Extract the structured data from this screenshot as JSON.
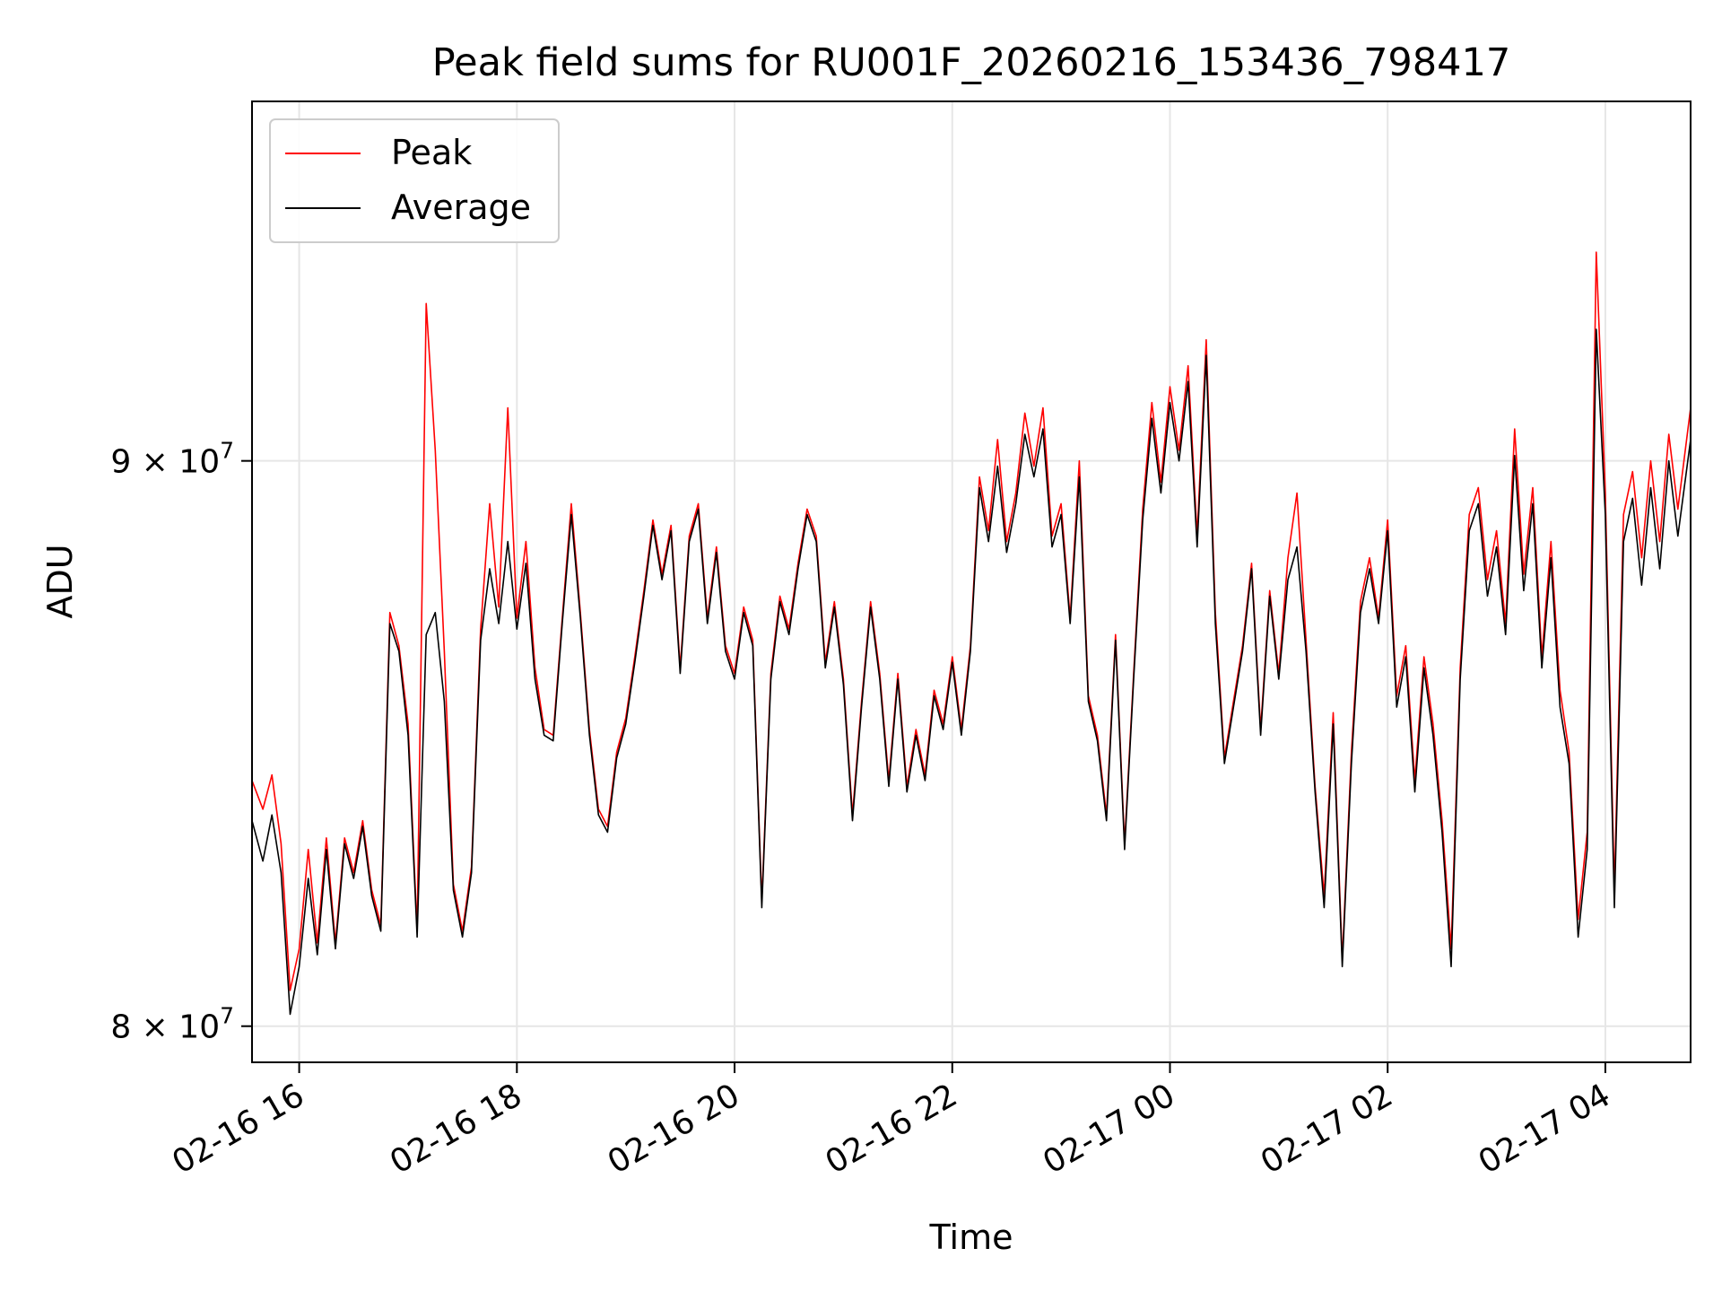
{
  "chart_data": {
    "type": "line",
    "title": "Peak field sums for RU001F_20260216_153436_798417",
    "xlabel": "Time",
    "ylabel": "ADU",
    "y_scale": "log",
    "xlim": [
      "2026-02-16 15:34",
      "2026-02-17 04:47"
    ],
    "ylim": [
      79400000,
      97000000
    ],
    "x_ticks": [
      "02-16 16",
      "02-16 18",
      "02-16 20",
      "02-16 22",
      "02-17 00",
      "02-17 02",
      "02-17 04"
    ],
    "y_ticks": [
      {
        "value": 80000000,
        "mantissa": "8",
        "base": "10",
        "exp": "7"
      },
      {
        "value": 90000000,
        "mantissa": "9",
        "base": "10",
        "exp": "7"
      }
    ],
    "grid": true,
    "legend_position": "top-left",
    "series": [
      {
        "name": "Peak",
        "color": "#ff0000",
        "line_width": 1.0
      },
      {
        "name": "Average",
        "color": "#000000",
        "line_width": 1.0
      }
    ],
    "average_points": [
      [
        "2026-02-16 15:34",
        83.5
      ],
      [
        "2026-02-16 15:40",
        82.8
      ],
      [
        "2026-02-16 15:45",
        83.6
      ],
      [
        "2026-02-16 15:50",
        82.6
      ],
      [
        "2026-02-16 15:55",
        80.2
      ],
      [
        "2026-02-16 16:00",
        81.0
      ],
      [
        "2026-02-16 16:05",
        82.5
      ],
      [
        "2026-02-16 16:10",
        81.2
      ],
      [
        "2026-02-16 16:15",
        83.0
      ],
      [
        "2026-02-16 16:20",
        81.3
      ],
      [
        "2026-02-16 16:25",
        83.1
      ],
      [
        "2026-02-16 16:30",
        82.5
      ],
      [
        "2026-02-16 16:35",
        83.4
      ],
      [
        "2026-02-16 16:40",
        82.2
      ],
      [
        "2026-02-16 16:45",
        81.6
      ],
      [
        "2026-02-16 16:50",
        87.0
      ],
      [
        "2026-02-16 16:55",
        86.5
      ],
      [
        "2026-02-16 17:00",
        85.0
      ],
      [
        "2026-02-16 17:05",
        81.5
      ],
      [
        "2026-02-16 17:10",
        86.8
      ],
      [
        "2026-02-16 17:15",
        87.2
      ],
      [
        "2026-02-16 17:20",
        85.6
      ],
      [
        "2026-02-16 17:25",
        82.3
      ],
      [
        "2026-02-16 17:30",
        81.5
      ],
      [
        "2026-02-16 17:35",
        82.6
      ],
      [
        "2026-02-16 17:40",
        86.7
      ],
      [
        "2026-02-16 17:45",
        88.0
      ],
      [
        "2026-02-16 17:50",
        87.0
      ],
      [
        "2026-02-16 17:55",
        88.5
      ],
      [
        "2026-02-16 18:00",
        86.9
      ],
      [
        "2026-02-16 18:05",
        88.1
      ],
      [
        "2026-02-16 18:10",
        86.0
      ],
      [
        "2026-02-16 18:15",
        85.0
      ],
      [
        "2026-02-16 18:20",
        84.9
      ],
      [
        "2026-02-16 18:25",
        87.0
      ],
      [
        "2026-02-16 18:30",
        89.0
      ],
      [
        "2026-02-16 18:35",
        87.1
      ],
      [
        "2026-02-16 18:40",
        85.0
      ],
      [
        "2026-02-16 18:45",
        83.6
      ],
      [
        "2026-02-16 18:50",
        83.3
      ],
      [
        "2026-02-16 18:55",
        84.6
      ],
      [
        "2026-02-16 19:00",
        85.2
      ],
      [
        "2026-02-16 19:05",
        86.3
      ],
      [
        "2026-02-16 19:10",
        87.5
      ],
      [
        "2026-02-16 19:15",
        88.8
      ],
      [
        "2026-02-16 19:20",
        87.8
      ],
      [
        "2026-02-16 19:25",
        88.7
      ],
      [
        "2026-02-16 19:30",
        86.1
      ],
      [
        "2026-02-16 19:35",
        88.5
      ],
      [
        "2026-02-16 19:40",
        89.1
      ],
      [
        "2026-02-16 19:45",
        87.0
      ],
      [
        "2026-02-16 19:50",
        88.3
      ],
      [
        "2026-02-16 19:55",
        86.5
      ],
      [
        "2026-02-16 20:00",
        86.0
      ],
      [
        "2026-02-16 20:05",
        87.2
      ],
      [
        "2026-02-16 20:10",
        86.6
      ],
      [
        "2026-02-16 20:15",
        82.0
      ],
      [
        "2026-02-16 20:20",
        86.0
      ],
      [
        "2026-02-16 20:25",
        87.4
      ],
      [
        "2026-02-16 20:30",
        86.8
      ],
      [
        "2026-02-16 20:35",
        88.0
      ],
      [
        "2026-02-16 20:40",
        89.0
      ],
      [
        "2026-02-16 20:45",
        88.5
      ],
      [
        "2026-02-16 20:50",
        86.2
      ],
      [
        "2026-02-16 20:55",
        87.3
      ],
      [
        "2026-02-16 21:00",
        85.9
      ],
      [
        "2026-02-16 21:05",
        83.5
      ],
      [
        "2026-02-16 21:10",
        85.5
      ],
      [
        "2026-02-16 21:15",
        87.3
      ],
      [
        "2026-02-16 21:20",
        86.0
      ],
      [
        "2026-02-16 21:25",
        84.1
      ],
      [
        "2026-02-16 21:30",
        86.0
      ],
      [
        "2026-02-16 21:35",
        84.0
      ],
      [
        "2026-02-16 21:40",
        85.0
      ],
      [
        "2026-02-16 21:45",
        84.2
      ],
      [
        "2026-02-16 21:50",
        85.7
      ],
      [
        "2026-02-16 21:55",
        85.1
      ],
      [
        "2026-02-16 22:00",
        86.3
      ],
      [
        "2026-02-16 22:05",
        85.0
      ],
      [
        "2026-02-16 22:10",
        86.5
      ],
      [
        "2026-02-16 22:15",
        89.5
      ],
      [
        "2026-02-16 22:20",
        88.5
      ],
      [
        "2026-02-16 22:25",
        89.9
      ],
      [
        "2026-02-16 22:30",
        88.3
      ],
      [
        "2026-02-16 22:35",
        89.2
      ],
      [
        "2026-02-16 22:40",
        90.5
      ],
      [
        "2026-02-16 22:45",
        89.7
      ],
      [
        "2026-02-16 22:50",
        90.6
      ],
      [
        "2026-02-16 22:55",
        88.4
      ],
      [
        "2026-02-16 23:00",
        89.0
      ],
      [
        "2026-02-16 23:05",
        87.0
      ],
      [
        "2026-02-16 23:10",
        89.7
      ],
      [
        "2026-02-16 23:15",
        85.6
      ],
      [
        "2026-02-16 23:20",
        84.9
      ],
      [
        "2026-02-16 23:25",
        83.5
      ],
      [
        "2026-02-16 23:30",
        86.7
      ],
      [
        "2026-02-16 23:35",
        83.0
      ],
      [
        "2026-02-16 23:40",
        86.0
      ],
      [
        "2026-02-16 23:45",
        88.9
      ],
      [
        "2026-02-16 23:50",
        90.8
      ],
      [
        "2026-02-16 23:55",
        89.4
      ],
      [
        "2026-02-17 00:00",
        91.1
      ],
      [
        "2026-02-17 00:05",
        90.0
      ],
      [
        "2026-02-17 00:10",
        91.5
      ],
      [
        "2026-02-17 00:15",
        88.4
      ],
      [
        "2026-02-17 00:20",
        92.0
      ],
      [
        "2026-02-17 00:25",
        87.0
      ],
      [
        "2026-02-17 00:30",
        84.5
      ],
      [
        "2026-02-17 00:35",
        85.5
      ],
      [
        "2026-02-17 00:40",
        86.5
      ],
      [
        "2026-02-17 00:45",
        88.0
      ],
      [
        "2026-02-17 00:50",
        85.0
      ],
      [
        "2026-02-17 00:55",
        87.5
      ],
      [
        "2026-02-17 01:00",
        86.0
      ],
      [
        "2026-02-17 01:05",
        87.8
      ],
      [
        "2026-02-17 01:10",
        88.4
      ],
      [
        "2026-02-17 01:15",
        86.5
      ],
      [
        "2026-02-17 01:20",
        84.0
      ],
      [
        "2026-02-17 01:25",
        82.0
      ],
      [
        "2026-02-17 01:30",
        85.2
      ],
      [
        "2026-02-17 01:35",
        81.0
      ],
      [
        "2026-02-17 01:40",
        84.5
      ],
      [
        "2026-02-17 01:45",
        87.2
      ],
      [
        "2026-02-17 01:50",
        88.0
      ],
      [
        "2026-02-17 01:55",
        87.0
      ],
      [
        "2026-02-17 02:00",
        88.7
      ],
      [
        "2026-02-17 02:05",
        85.5
      ],
      [
        "2026-02-17 02:10",
        86.4
      ],
      [
        "2026-02-17 02:15",
        84.0
      ],
      [
        "2026-02-17 02:20",
        86.2
      ],
      [
        "2026-02-17 02:25",
        85.0
      ],
      [
        "2026-02-17 02:30",
        83.3
      ],
      [
        "2026-02-17 02:35",
        81.0
      ],
      [
        "2026-02-17 02:40",
        86.0
      ],
      [
        "2026-02-17 02:45",
        88.7
      ],
      [
        "2026-02-17 02:50",
        89.2
      ],
      [
        "2026-02-17 02:55",
        87.5
      ],
      [
        "2026-02-17 03:00",
        88.4
      ],
      [
        "2026-02-17 03:05",
        86.8
      ],
      [
        "2026-02-17 03:10",
        90.1
      ],
      [
        "2026-02-17 03:15",
        87.6
      ],
      [
        "2026-02-17 03:20",
        89.2
      ],
      [
        "2026-02-17 03:25",
        86.2
      ],
      [
        "2026-02-17 03:30",
        88.2
      ],
      [
        "2026-02-17 03:35",
        85.5
      ],
      [
        "2026-02-17 03:40",
        84.5
      ],
      [
        "2026-02-17 03:45",
        81.5
      ],
      [
        "2026-02-17 03:50",
        83.0
      ],
      [
        "2026-02-17 03:55",
        92.5
      ],
      [
        "2026-02-17 04:00",
        89.0
      ],
      [
        "2026-02-17 04:05",
        82.0
      ],
      [
        "2026-02-17 04:10",
        88.5
      ],
      [
        "2026-02-17 04:15",
        89.3
      ],
      [
        "2026-02-17 04:20",
        87.7
      ],
      [
        "2026-02-17 04:25",
        89.5
      ],
      [
        "2026-02-17 04:30",
        88.0
      ],
      [
        "2026-02-17 04:35",
        90.0
      ],
      [
        "2026-02-17 04:40",
        88.6
      ],
      [
        "2026-02-17 04:47",
        90.4
      ]
    ],
    "peak_points": [
      [
        "2026-02-16 15:34",
        84.2
      ],
      [
        "2026-02-16 15:40",
        83.7
      ],
      [
        "2026-02-16 15:45",
        84.3
      ],
      [
        "2026-02-16 15:50",
        83.1
      ],
      [
        "2026-02-16 15:55",
        80.6
      ],
      [
        "2026-02-16 16:00",
        81.3
      ],
      [
        "2026-02-16 16:05",
        83.0
      ],
      [
        "2026-02-16 16:10",
        81.4
      ],
      [
        "2026-02-16 16:15",
        83.2
      ],
      [
        "2026-02-16 16:20",
        81.4
      ],
      [
        "2026-02-16 16:25",
        83.2
      ],
      [
        "2026-02-16 16:30",
        82.6
      ],
      [
        "2026-02-16 16:35",
        83.5
      ],
      [
        "2026-02-16 16:40",
        82.3
      ],
      [
        "2026-02-16 16:45",
        81.7
      ],
      [
        "2026-02-16 16:50",
        87.2
      ],
      [
        "2026-02-16 16:55",
        86.6
      ],
      [
        "2026-02-16 17:00",
        85.2
      ],
      [
        "2026-02-16 17:05",
        81.6
      ],
      [
        "2026-02-16 17:10",
        93.0
      ],
      [
        "2026-02-16 17:15",
        90.2
      ],
      [
        "2026-02-16 17:20",
        86.5
      ],
      [
        "2026-02-16 17:25",
        82.4
      ],
      [
        "2026-02-16 17:30",
        81.6
      ],
      [
        "2026-02-16 17:35",
        82.7
      ],
      [
        "2026-02-16 17:40",
        86.9
      ],
      [
        "2026-02-16 17:45",
        89.2
      ],
      [
        "2026-02-16 17:50",
        87.3
      ],
      [
        "2026-02-16 17:55",
        91.0
      ],
      [
        "2026-02-16 18:00",
        87.1
      ],
      [
        "2026-02-16 18:05",
        88.5
      ],
      [
        "2026-02-16 18:10",
        86.2
      ],
      [
        "2026-02-16 18:15",
        85.1
      ],
      [
        "2026-02-16 18:20",
        85.0
      ],
      [
        "2026-02-16 18:25",
        87.1
      ],
      [
        "2026-02-16 18:30",
        89.2
      ],
      [
        "2026-02-16 18:35",
        87.2
      ],
      [
        "2026-02-16 18:40",
        85.1
      ],
      [
        "2026-02-16 18:45",
        83.7
      ],
      [
        "2026-02-16 18:50",
        83.4
      ],
      [
        "2026-02-16 18:55",
        84.7
      ],
      [
        "2026-02-16 19:00",
        85.3
      ],
      [
        "2026-02-16 19:05",
        86.4
      ],
      [
        "2026-02-16 19:10",
        87.6
      ],
      [
        "2026-02-16 19:15",
        88.9
      ],
      [
        "2026-02-16 19:20",
        87.9
      ],
      [
        "2026-02-16 19:25",
        88.8
      ],
      [
        "2026-02-16 19:30",
        86.2
      ],
      [
        "2026-02-16 19:35",
        88.6
      ],
      [
        "2026-02-16 19:40",
        89.2
      ],
      [
        "2026-02-16 19:45",
        87.1
      ],
      [
        "2026-02-16 19:50",
        88.4
      ],
      [
        "2026-02-16 19:55",
        86.6
      ],
      [
        "2026-02-16 20:00",
        86.1
      ],
      [
        "2026-02-16 20:05",
        87.3
      ],
      [
        "2026-02-16 20:10",
        86.7
      ],
      [
        "2026-02-16 20:15",
        82.1
      ],
      [
        "2026-02-16 20:20",
        86.1
      ],
      [
        "2026-02-16 20:25",
        87.5
      ],
      [
        "2026-02-16 20:30",
        86.9
      ],
      [
        "2026-02-16 20:35",
        88.1
      ],
      [
        "2026-02-16 20:40",
        89.1
      ],
      [
        "2026-02-16 20:45",
        88.6
      ],
      [
        "2026-02-16 20:50",
        86.3
      ],
      [
        "2026-02-16 20:55",
        87.4
      ],
      [
        "2026-02-16 21:00",
        86.0
      ],
      [
        "2026-02-16 21:05",
        83.6
      ],
      [
        "2026-02-16 21:10",
        85.6
      ],
      [
        "2026-02-16 21:15",
        87.4
      ],
      [
        "2026-02-16 21:20",
        86.1
      ],
      [
        "2026-02-16 21:25",
        84.2
      ],
      [
        "2026-02-16 21:30",
        86.1
      ],
      [
        "2026-02-16 21:35",
        84.1
      ],
      [
        "2026-02-16 21:40",
        85.1
      ],
      [
        "2026-02-16 21:45",
        84.3
      ],
      [
        "2026-02-16 21:50",
        85.8
      ],
      [
        "2026-02-16 21:55",
        85.2
      ],
      [
        "2026-02-16 22:00",
        86.4
      ],
      [
        "2026-02-16 22:05",
        85.1
      ],
      [
        "2026-02-16 22:10",
        86.6
      ],
      [
        "2026-02-16 22:15",
        89.7
      ],
      [
        "2026-02-16 22:20",
        88.7
      ],
      [
        "2026-02-16 22:25",
        90.4
      ],
      [
        "2026-02-16 22:30",
        88.5
      ],
      [
        "2026-02-16 22:35",
        89.4
      ],
      [
        "2026-02-16 22:40",
        90.9
      ],
      [
        "2026-02-16 22:45",
        89.9
      ],
      [
        "2026-02-16 22:50",
        91.0
      ],
      [
        "2026-02-16 22:55",
        88.6
      ],
      [
        "2026-02-16 23:00",
        89.2
      ],
      [
        "2026-02-16 23:05",
        87.1
      ],
      [
        "2026-02-16 23:10",
        90.0
      ],
      [
        "2026-02-16 23:15",
        85.7
      ],
      [
        "2026-02-16 23:20",
        85.0
      ],
      [
        "2026-02-16 23:25",
        83.6
      ],
      [
        "2026-02-16 23:30",
        86.8
      ],
      [
        "2026-02-16 23:35",
        83.1
      ],
      [
        "2026-02-16 23:40",
        86.1
      ],
      [
        "2026-02-16 23:45",
        89.1
      ],
      [
        "2026-02-16 23:50",
        91.1
      ],
      [
        "2026-02-16 23:55",
        89.6
      ],
      [
        "2026-02-17 00:00",
        91.4
      ],
      [
        "2026-02-17 00:05",
        90.2
      ],
      [
        "2026-02-17 00:10",
        91.8
      ],
      [
        "2026-02-17 00:15",
        88.6
      ],
      [
        "2026-02-17 00:20",
        92.3
      ],
      [
        "2026-02-17 00:25",
        87.2
      ],
      [
        "2026-02-17 00:30",
        84.6
      ],
      [
        "2026-02-17 00:35",
        85.6
      ],
      [
        "2026-02-17 00:40",
        86.6
      ],
      [
        "2026-02-17 00:45",
        88.1
      ],
      [
        "2026-02-17 00:50",
        85.1
      ],
      [
        "2026-02-17 00:55",
        87.6
      ],
      [
        "2026-02-17 01:00",
        86.1
      ],
      [
        "2026-02-17 01:05",
        88.2
      ],
      [
        "2026-02-17 01:10",
        89.4
      ],
      [
        "2026-02-17 01:15",
        86.7
      ],
      [
        "2026-02-17 01:20",
        84.1
      ],
      [
        "2026-02-17 01:25",
        82.2
      ],
      [
        "2026-02-17 01:30",
        85.4
      ],
      [
        "2026-02-17 01:35",
        81.1
      ],
      [
        "2026-02-17 01:40",
        84.7
      ],
      [
        "2026-02-17 01:45",
        87.4
      ],
      [
        "2026-02-17 01:50",
        88.2
      ],
      [
        "2026-02-17 01:55",
        87.1
      ],
      [
        "2026-02-17 02:00",
        88.9
      ],
      [
        "2026-02-17 02:05",
        85.7
      ],
      [
        "2026-02-17 02:10",
        86.6
      ],
      [
        "2026-02-17 02:15",
        84.2
      ],
      [
        "2026-02-17 02:20",
        86.4
      ],
      [
        "2026-02-17 02:25",
        85.2
      ],
      [
        "2026-02-17 02:30",
        83.5
      ],
      [
        "2026-02-17 02:35",
        81.3
      ],
      [
        "2026-02-17 02:40",
        86.2
      ],
      [
        "2026-02-17 02:45",
        89.0
      ],
      [
        "2026-02-17 02:50",
        89.5
      ],
      [
        "2026-02-17 02:55",
        87.8
      ],
      [
        "2026-02-17 03:00",
        88.7
      ],
      [
        "2026-02-17 03:05",
        87.0
      ],
      [
        "2026-02-17 03:10",
        90.6
      ],
      [
        "2026-02-17 03:15",
        87.9
      ],
      [
        "2026-02-17 03:20",
        89.5
      ],
      [
        "2026-02-17 03:25",
        86.4
      ],
      [
        "2026-02-17 03:30",
        88.5
      ],
      [
        "2026-02-17 03:35",
        85.8
      ],
      [
        "2026-02-17 03:40",
        84.7
      ],
      [
        "2026-02-17 03:45",
        81.8
      ],
      [
        "2026-02-17 03:50",
        83.3
      ],
      [
        "2026-02-17 03:55",
        94.0
      ],
      [
        "2026-02-17 04:00",
        89.4
      ],
      [
        "2026-02-17 04:05",
        82.3
      ],
      [
        "2026-02-17 04:10",
        89.0
      ],
      [
        "2026-02-17 04:15",
        89.8
      ],
      [
        "2026-02-17 04:20",
        88.2
      ],
      [
        "2026-02-17 04:25",
        90.0
      ],
      [
        "2026-02-17 04:30",
        88.5
      ],
      [
        "2026-02-17 04:35",
        90.5
      ],
      [
        "2026-02-17 04:40",
        89.1
      ],
      [
        "2026-02-17 04:47",
        91.0
      ]
    ],
    "points_unit_note": ""
  }
}
